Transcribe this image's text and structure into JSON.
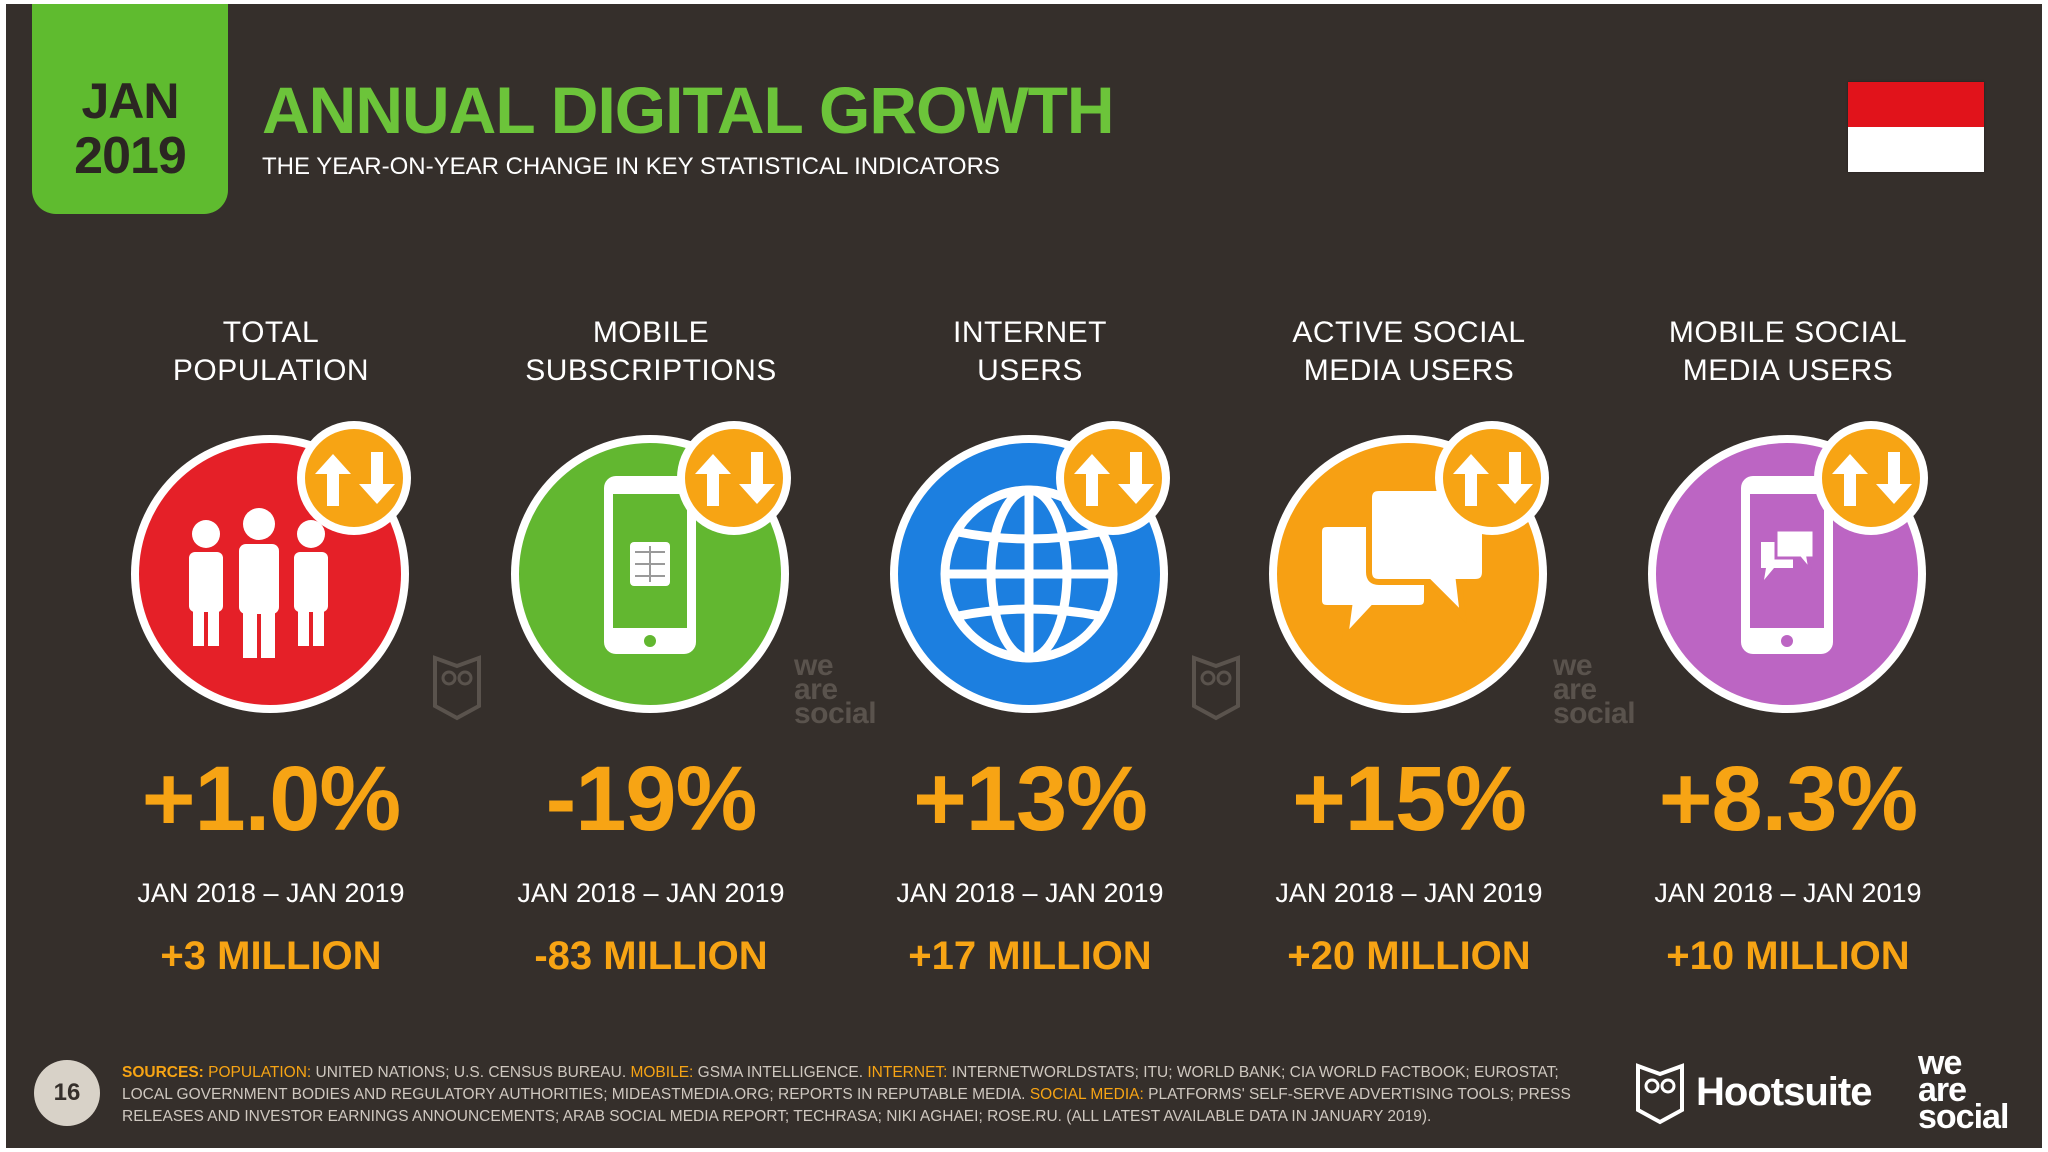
{
  "badge": {
    "month": "JAN",
    "year": "2019"
  },
  "title": "ANNUAL DIGITAL GROWTH",
  "subtitle": "THE YEAR-ON-YEAR CHANGE IN KEY STATISTICAL INDICATORS",
  "flag": {
    "top_color": "#e1131b",
    "bottom_color": "#ffffff"
  },
  "accent_color": "#f7a414",
  "indicators": [
    {
      "label_line1": "TOTAL",
      "label_line2": "POPULATION",
      "icon": "people-icon",
      "color": "#e52028",
      "change": "+1.0%",
      "period": "JAN 2018 – JAN 2019",
      "absolute": "+3 MILLION"
    },
    {
      "label_line1": "MOBILE",
      "label_line2": "SUBSCRIPTIONS",
      "icon": "phone-sim-icon",
      "color": "#62b730",
      "change": "-19%",
      "period": "JAN 2018 – JAN 2019",
      "absolute": "-83 MILLION"
    },
    {
      "label_line1": "INTERNET",
      "label_line2": "USERS",
      "icon": "globe-icon",
      "color": "#1c7fe0",
      "change": "+13%",
      "period": "JAN 2018 – JAN 2019",
      "absolute": "+17 MILLION"
    },
    {
      "label_line1": "ACTIVE SOCIAL",
      "label_line2": "MEDIA USERS",
      "icon": "chat-bubbles-icon",
      "color": "#f7a013",
      "change": "+15%",
      "period": "JAN 2018 – JAN 2019",
      "absolute": "+20 MILLION"
    },
    {
      "label_line1": "MOBILE SOCIAL",
      "label_line2": "MEDIA USERS",
      "icon": "phone-chat-icon",
      "color": "#bc65c3",
      "change": "+8.3%",
      "period": "JAN 2018 – JAN 2019",
      "absolute": "+10 MILLION"
    }
  ],
  "watermark": {
    "line1": "we",
    "line2": "are",
    "line3": "social"
  },
  "page_number": "16",
  "sources": {
    "lead": "SOURCES:",
    "k_population": "POPULATION:",
    "v_population": "UNITED NATIONS; U.S. CENSUS BUREAU.",
    "k_mobile": "MOBILE:",
    "v_mobile": "GSMA INTELLIGENCE.",
    "k_internet": "INTERNET:",
    "v_internet": "INTERNETWORLDSTATS; ITU; WORLD BANK; CIA WORLD FACTBOOK; EUROSTAT; LOCAL GOVERNMENT BODIES AND REGULATORY AUTHORITIES; MIDEASTMEDIA.ORG; REPORTS IN REPUTABLE MEDIA.",
    "k_social": "SOCIAL MEDIA:",
    "v_social": "PLATFORMS' SELF-SERVE ADVERTISING TOOLS; PRESS RELEASES AND INVESTOR EARNINGS ANNOUNCEMENTS; ARAB SOCIAL MEDIA REPORT; TECHRASA; NIKI AGHAEI; ROSE.RU. (ALL LATEST AVAILABLE DATA IN JANUARY 2019)."
  },
  "brands": {
    "hootsuite": "Hootsuite",
    "we": "we",
    "are": "are",
    "social": "social"
  }
}
